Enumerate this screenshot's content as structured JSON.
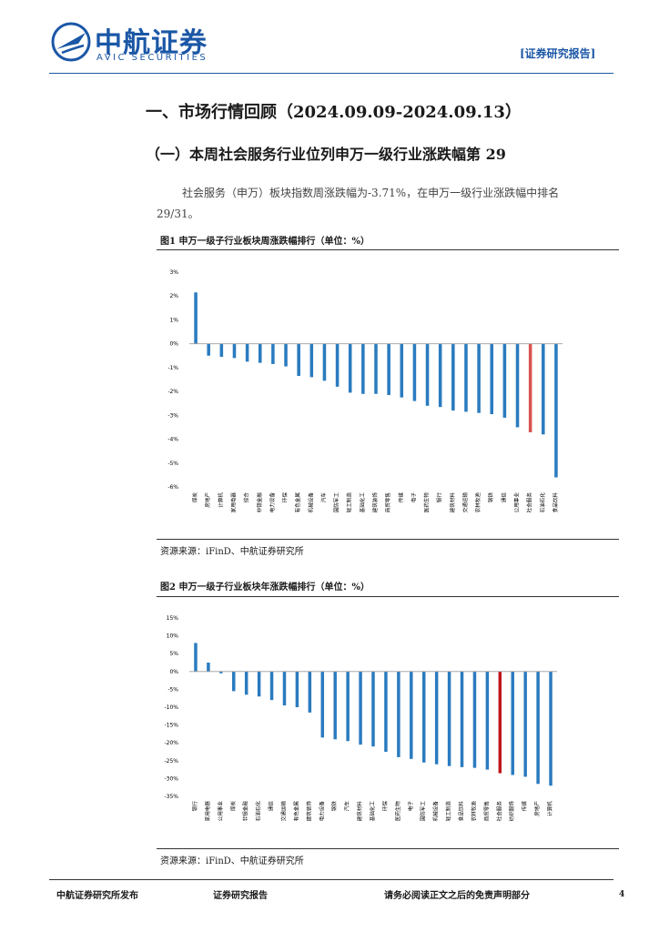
{
  "header": {
    "logo_cn": "中航证券",
    "logo_en": "AVIC SECURITIES",
    "tag": "[证券研究报告]"
  },
  "section_title": "一、市场行情回顾（2024.09.09-2024.09.13）",
  "subsection_title": "（一）本周社会服务行业位列申万一级行业涨跌幅第 29",
  "paragraph": {
    "line1": "社会服务（申万）板块指数周涨跌幅为-3.71%，在申万一级行业涨跌幅中排名",
    "line2": "29/31。"
  },
  "figure1": {
    "title": "图1  申万一级子行业板块周涨跌幅排行（单位：%）",
    "source": "资源来源：iFinD、中航证券研究所"
  },
  "figure2": {
    "title": "图2  申万一级子行业板块年涨跌幅排行（单位：%）",
    "source": "资源来源：iFinD、中航证券研究所"
  },
  "footer": {
    "left": "中航证券研究所发布",
    "mid": "证券研究报告",
    "right": "请务必阅读正文之后的免责声明部分",
    "page": "4"
  },
  "colors": {
    "bar": "#2a7bbf",
    "highlight_weekly": "#d9534f",
    "highlight_yearly": "#c0161b",
    "brand": "#1b57a6"
  },
  "chart_data": [
    {
      "type": "bar",
      "title": "图1  申万一级子行业板块周涨跌幅排行（单位：%）",
      "ylim": [
        -6,
        3
      ],
      "yticks": [
        "3%",
        "2%",
        "1%",
        "0%",
        "-1%",
        "-2%",
        "-3%",
        "-4%",
        "-5%",
        "-6%"
      ],
      "highlight": "社会服务",
      "categories": [
        "煤炭",
        "房地产",
        "计算机",
        "家用电器",
        "综合",
        "非银金融",
        "电力设备",
        "环保",
        "有色金属",
        "机械设备",
        "汽车",
        "国防军工",
        "轻工制造",
        "基础化工",
        "建筑装饰",
        "商贸零售",
        "传媒",
        "电子",
        "医药生物",
        "银行",
        "建筑材料",
        "交通运输",
        "农林牧渔",
        "钢铁",
        "通信",
        "公用事业",
        "社会服务",
        "石油石化",
        "食品饮料"
      ],
      "values": [
        2.15,
        -0.5,
        -0.55,
        -0.6,
        -0.75,
        -0.8,
        -0.85,
        -0.95,
        -1.35,
        -1.4,
        -1.55,
        -1.8,
        -2.05,
        -2.1,
        -2.1,
        -2.15,
        -2.25,
        -2.4,
        -2.6,
        -2.65,
        -2.8,
        -2.85,
        -2.9,
        -2.95,
        -3.1,
        -3.5,
        -3.71,
        -3.8,
        -5.6
      ]
    },
    {
      "type": "bar",
      "title": "图2  申万一级子行业板块年涨跌幅排行（单位：%）",
      "ylim": [
        -35,
        15
      ],
      "yticks": [
        "15%",
        "10%",
        "5%",
        "0%",
        "-5%",
        "-10%",
        "-15%",
        "-20%",
        "-25%",
        "-30%",
        "-35%"
      ],
      "highlight": "社会服务",
      "categories": [
        "银行",
        "家用电器",
        "公用事业",
        "煤炭",
        "非银金融",
        "石油石化",
        "通信",
        "交通运输",
        "有色金属",
        "建筑装饰",
        "电力设备",
        "钢铁",
        "汽车",
        "建筑材料",
        "基础化工",
        "环保",
        "医药生物",
        "电子",
        "国防军工",
        "机械设备",
        "轻工制造",
        "食品饮料",
        "农林牧渔",
        "商贸零售",
        "社会服务",
        "纺织服饰",
        "传媒",
        "房地产",
        "计算机"
      ],
      "values": [
        8,
        2.5,
        -0.5,
        -5.5,
        -6.5,
        -7,
        -8,
        -9.5,
        -10,
        -11.5,
        -18.5,
        -19,
        -19.5,
        -20.5,
        -21,
        -22.5,
        -24,
        -24.5,
        -25.5,
        -26,
        -26.5,
        -26.8,
        -27,
        -27.5,
        -28.5,
        -29,
        -29.5,
        -31.5,
        -32
      ]
    }
  ]
}
